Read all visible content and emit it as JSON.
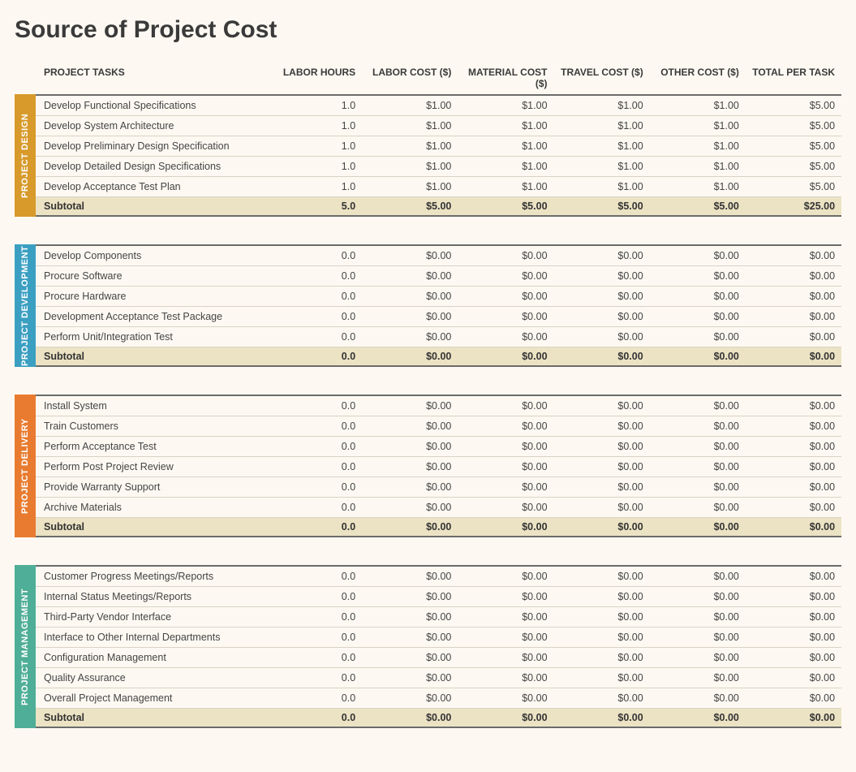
{
  "title": "Source of Project Cost",
  "columns": {
    "task": "PROJECT TASKS",
    "labor_hours": "LABOR HOURS",
    "labor_cost": "LABOR COST ($)",
    "material_cost": "MATERIAL COST ($)",
    "travel_cost": "TRAVEL COST ($)",
    "other_cost": "OTHER COST ($)",
    "total": "TOTAL PER TASK"
  },
  "subtotal_label": "Subtotal",
  "colors": {
    "page_bg": "#fdf9f2",
    "subtotal_bg": "#ece3c4",
    "border": "#6b6b6b",
    "row_divider": "#d8d3c5",
    "text": "#3a3a3a"
  },
  "sections": [
    {
      "id": "design",
      "label": "PROJECT DESIGN",
      "tab_color": "#d79a2b",
      "rows": [
        {
          "task": "Develop Functional Specifications",
          "labor_hours": "1.0",
          "labor_cost": "$1.00",
          "material_cost": "$1.00",
          "travel_cost": "$1.00",
          "other_cost": "$1.00",
          "total": "$5.00"
        },
        {
          "task": "Develop System Architecture",
          "labor_hours": "1.0",
          "labor_cost": "$1.00",
          "material_cost": "$1.00",
          "travel_cost": "$1.00",
          "other_cost": "$1.00",
          "total": "$5.00"
        },
        {
          "task": "Develop Preliminary Design Specification",
          "labor_hours": "1.0",
          "labor_cost": "$1.00",
          "material_cost": "$1.00",
          "travel_cost": "$1.00",
          "other_cost": "$1.00",
          "total": "$5.00"
        },
        {
          "task": "Develop Detailed Design Specifications",
          "labor_hours": "1.0",
          "labor_cost": "$1.00",
          "material_cost": "$1.00",
          "travel_cost": "$1.00",
          "other_cost": "$1.00",
          "total": "$5.00"
        },
        {
          "task": "Develop Acceptance Test Plan",
          "labor_hours": "1.0",
          "labor_cost": "$1.00",
          "material_cost": "$1.00",
          "travel_cost": "$1.00",
          "other_cost": "$1.00",
          "total": "$5.00"
        }
      ],
      "subtotal": {
        "labor_hours": "5.0",
        "labor_cost": "$5.00",
        "material_cost": "$5.00",
        "travel_cost": "$5.00",
        "other_cost": "$5.00",
        "total": "$25.00"
      }
    },
    {
      "id": "development",
      "label": "PROJECT DEVELOPMENT",
      "tab_color": "#3b9fc2",
      "rows": [
        {
          "task": "Develop Components",
          "labor_hours": "0.0",
          "labor_cost": "$0.00",
          "material_cost": "$0.00",
          "travel_cost": "$0.00",
          "other_cost": "$0.00",
          "total": "$0.00"
        },
        {
          "task": "Procure Software",
          "labor_hours": "0.0",
          "labor_cost": "$0.00",
          "material_cost": "$0.00",
          "travel_cost": "$0.00",
          "other_cost": "$0.00",
          "total": "$0.00"
        },
        {
          "task": "Procure Hardware",
          "labor_hours": "0.0",
          "labor_cost": "$0.00",
          "material_cost": "$0.00",
          "travel_cost": "$0.00",
          "other_cost": "$0.00",
          "total": "$0.00"
        },
        {
          "task": "Development Acceptance Test Package",
          "labor_hours": "0.0",
          "labor_cost": "$0.00",
          "material_cost": "$0.00",
          "travel_cost": "$0.00",
          "other_cost": "$0.00",
          "total": "$0.00"
        },
        {
          "task": "Perform Unit/Integration Test",
          "labor_hours": "0.0",
          "labor_cost": "$0.00",
          "material_cost": "$0.00",
          "travel_cost": "$0.00",
          "other_cost": "$0.00",
          "total": "$0.00"
        }
      ],
      "subtotal": {
        "labor_hours": "0.0",
        "labor_cost": "$0.00",
        "material_cost": "$0.00",
        "travel_cost": "$0.00",
        "other_cost": "$0.00",
        "total": "$0.00"
      }
    },
    {
      "id": "delivery",
      "label": "PROJECT DELIVERY",
      "tab_color": "#e87b2f",
      "rows": [
        {
          "task": "Install System",
          "labor_hours": "0.0",
          "labor_cost": "$0.00",
          "material_cost": "$0.00",
          "travel_cost": "$0.00",
          "other_cost": "$0.00",
          "total": "$0.00"
        },
        {
          "task": "Train Customers",
          "labor_hours": "0.0",
          "labor_cost": "$0.00",
          "material_cost": "$0.00",
          "travel_cost": "$0.00",
          "other_cost": "$0.00",
          "total": "$0.00"
        },
        {
          "task": "Perform Acceptance Test",
          "labor_hours": "0.0",
          "labor_cost": "$0.00",
          "material_cost": "$0.00",
          "travel_cost": "$0.00",
          "other_cost": "$0.00",
          "total": "$0.00"
        },
        {
          "task": "Perform Post Project Review",
          "labor_hours": "0.0",
          "labor_cost": "$0.00",
          "material_cost": "$0.00",
          "travel_cost": "$0.00",
          "other_cost": "$0.00",
          "total": "$0.00"
        },
        {
          "task": "Provide Warranty Support",
          "labor_hours": "0.0",
          "labor_cost": "$0.00",
          "material_cost": "$0.00",
          "travel_cost": "$0.00",
          "other_cost": "$0.00",
          "total": "$0.00"
        },
        {
          "task": "Archive Materials",
          "labor_hours": "0.0",
          "labor_cost": "$0.00",
          "material_cost": "$0.00",
          "travel_cost": "$0.00",
          "other_cost": "$0.00",
          "total": "$0.00"
        }
      ],
      "subtotal": {
        "labor_hours": "0.0",
        "labor_cost": "$0.00",
        "material_cost": "$0.00",
        "travel_cost": "$0.00",
        "other_cost": "$0.00",
        "total": "$0.00"
      }
    },
    {
      "id": "management",
      "label": "PROJECT MANAGEMENT",
      "tab_color": "#4fae97",
      "rows": [
        {
          "task": "Customer Progress Meetings/Reports",
          "labor_hours": "0.0",
          "labor_cost": "$0.00",
          "material_cost": "$0.00",
          "travel_cost": "$0.00",
          "other_cost": "$0.00",
          "total": "$0.00"
        },
        {
          "task": "Internal Status Meetings/Reports",
          "labor_hours": "0.0",
          "labor_cost": "$0.00",
          "material_cost": "$0.00",
          "travel_cost": "$0.00",
          "other_cost": "$0.00",
          "total": "$0.00"
        },
        {
          "task": "Third-Party Vendor Interface",
          "labor_hours": "0.0",
          "labor_cost": "$0.00",
          "material_cost": "$0.00",
          "travel_cost": "$0.00",
          "other_cost": "$0.00",
          "total": "$0.00"
        },
        {
          "task": "Interface to Other Internal Departments",
          "labor_hours": "0.0",
          "labor_cost": "$0.00",
          "material_cost": "$0.00",
          "travel_cost": "$0.00",
          "other_cost": "$0.00",
          "total": "$0.00"
        },
        {
          "task": "Configuration Management",
          "labor_hours": "0.0",
          "labor_cost": "$0.00",
          "material_cost": "$0.00",
          "travel_cost": "$0.00",
          "other_cost": "$0.00",
          "total": "$0.00"
        },
        {
          "task": "Quality Assurance",
          "labor_hours": "0.0",
          "labor_cost": "$0.00",
          "material_cost": "$0.00",
          "travel_cost": "$0.00",
          "other_cost": "$0.00",
          "total": "$0.00"
        },
        {
          "task": "Overall Project Management",
          "labor_hours": "0.0",
          "labor_cost": "$0.00",
          "material_cost": "$0.00",
          "travel_cost": "$0.00",
          "other_cost": "$0.00",
          "total": "$0.00"
        }
      ],
      "subtotal": {
        "labor_hours": "0.0",
        "labor_cost": "$0.00",
        "material_cost": "$0.00",
        "travel_cost": "$0.00",
        "other_cost": "$0.00",
        "total": "$0.00"
      }
    }
  ]
}
